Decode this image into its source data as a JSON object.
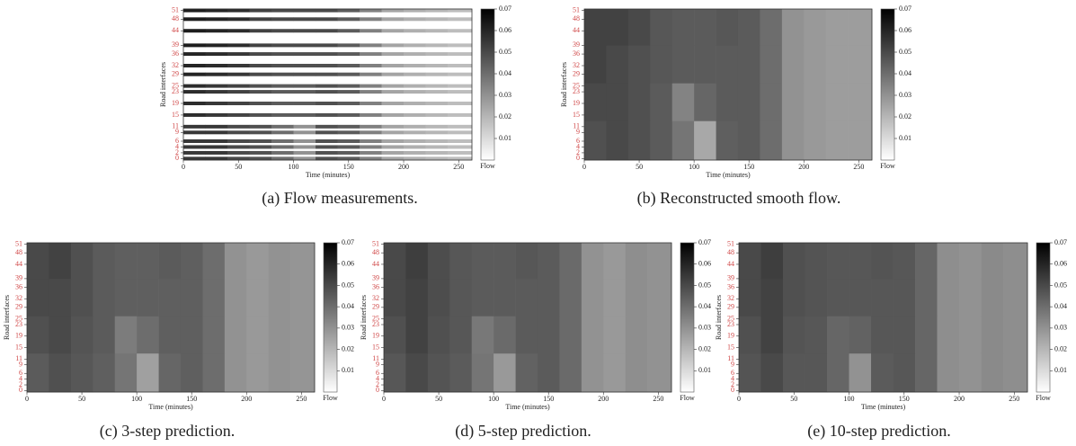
{
  "chart_data": [
    {
      "type": "heatmap",
      "style": "sensor-rows",
      "caption": "(a) Flow measurements.",
      "xlabel": "Time (minutes)",
      "ylabel": "Road interfaces",
      "colorbar_label": "Flow",
      "xlim": [
        0,
        262
      ],
      "xticks": [
        0,
        50,
        100,
        150,
        200,
        250
      ],
      "ylim": [
        -0.5,
        51.5
      ],
      "yticks": [
        0,
        2,
        4,
        6,
        9,
        11,
        15,
        19,
        23,
        25,
        29,
        32,
        36,
        39,
        44,
        48,
        51
      ],
      "ytick_color": "#d04848",
      "clim": [
        0,
        0.07
      ],
      "cticks": [
        0.01,
        0.02,
        0.03,
        0.04,
        0.05,
        0.06,
        0.07
      ],
      "xbins": [
        0,
        20,
        40,
        60,
        80,
        100,
        120,
        140,
        160,
        180,
        200,
        220,
        240,
        262
      ],
      "ybins": [
        -0.5,
        13,
        26,
        39,
        51.5
      ],
      "z": [
        [
          0.055,
          0.055,
          0.05,
          0.048,
          0.04,
          0.03,
          0.048,
          0.045,
          0.035,
          0.025,
          0.022,
          0.02,
          0.018
        ],
        [
          0.058,
          0.055,
          0.052,
          0.048,
          0.045,
          0.045,
          0.048,
          0.045,
          0.035,
          0.025,
          0.022,
          0.02,
          0.018
        ],
        [
          0.06,
          0.058,
          0.055,
          0.05,
          0.048,
          0.048,
          0.048,
          0.045,
          0.035,
          0.025,
          0.022,
          0.02,
          0.018
        ],
        [
          0.062,
          0.06,
          0.058,
          0.052,
          0.05,
          0.05,
          0.05,
          0.045,
          0.035,
          0.025,
          0.022,
          0.02,
          0.018
        ]
      ]
    },
    {
      "type": "heatmap",
      "style": "full",
      "caption": "(b) Reconstructed smooth flow.",
      "xlabel": "Time (minutes)",
      "ylabel": "Road interfaces",
      "colorbar_label": "Flow",
      "xlim": [
        0,
        262
      ],
      "xticks": [
        0,
        50,
        100,
        150,
        200,
        250
      ],
      "ylim": [
        -0.5,
        51.5
      ],
      "yticks": [
        0,
        2,
        4,
        6,
        9,
        11,
        15,
        19,
        23,
        25,
        29,
        32,
        36,
        39,
        44,
        48,
        51
      ],
      "ytick_color": "#d04848",
      "clim": [
        0,
        0.07
      ],
      "cticks": [
        0.01,
        0.02,
        0.03,
        0.04,
        0.05,
        0.06,
        0.07
      ],
      "xbins": [
        0,
        20,
        40,
        60,
        80,
        100,
        120,
        140,
        160,
        180,
        200,
        220,
        240,
        262
      ],
      "ybins": [
        -0.5,
        13,
        26,
        39,
        51.5
      ],
      "z": [
        [
          0.048,
          0.05,
          0.048,
          0.045,
          0.038,
          0.024,
          0.044,
          0.045,
          0.04,
          0.03,
          0.028,
          0.027,
          0.027
        ],
        [
          0.05,
          0.05,
          0.048,
          0.045,
          0.034,
          0.042,
          0.045,
          0.045,
          0.04,
          0.03,
          0.028,
          0.027,
          0.027
        ],
        [
          0.052,
          0.05,
          0.048,
          0.046,
          0.045,
          0.045,
          0.045,
          0.045,
          0.04,
          0.03,
          0.028,
          0.027,
          0.027
        ],
        [
          0.052,
          0.052,
          0.05,
          0.046,
          0.045,
          0.045,
          0.046,
          0.045,
          0.04,
          0.03,
          0.028,
          0.027,
          0.027
        ]
      ]
    },
    {
      "type": "heatmap",
      "style": "full",
      "caption": "(c) 3-step prediction.",
      "xlabel": "Time (minutes)",
      "ylabel": "Road interfaces",
      "colorbar_label": "Flow",
      "xlim": [
        0,
        262
      ],
      "xticks": [
        0,
        50,
        100,
        150,
        200,
        250
      ],
      "ylim": [
        -0.5,
        51.5
      ],
      "yticks": [
        0,
        2,
        4,
        6,
        9,
        11,
        15,
        19,
        23,
        25,
        29,
        32,
        36,
        39,
        44,
        48,
        51
      ],
      "ytick_color": "#d04848",
      "clim": [
        0,
        0.07
      ],
      "cticks": [
        0.01,
        0.02,
        0.03,
        0.04,
        0.05,
        0.06,
        0.07
      ],
      "xbins": [
        0,
        20,
        40,
        60,
        80,
        100,
        120,
        140,
        160,
        180,
        200,
        220,
        240,
        262
      ],
      "ybins": [
        -0.5,
        13,
        26,
        39,
        51.5
      ],
      "z": [
        [
          0.045,
          0.048,
          0.046,
          0.044,
          0.038,
          0.026,
          0.042,
          0.044,
          0.04,
          0.03,
          0.028,
          0.03,
          0.029
        ],
        [
          0.048,
          0.05,
          0.047,
          0.045,
          0.036,
          0.04,
          0.044,
          0.044,
          0.04,
          0.03,
          0.028,
          0.03,
          0.029
        ],
        [
          0.05,
          0.05,
          0.048,
          0.045,
          0.044,
          0.044,
          0.044,
          0.044,
          0.04,
          0.03,
          0.028,
          0.03,
          0.029
        ],
        [
          0.05,
          0.052,
          0.048,
          0.045,
          0.044,
          0.044,
          0.045,
          0.044,
          0.04,
          0.03,
          0.028,
          0.03,
          0.029
        ]
      ]
    },
    {
      "type": "heatmap",
      "style": "full",
      "caption": "(d) 5-step prediction.",
      "xlabel": "Time (minutes)",
      "ylabel": "Road interfaces",
      "colorbar_label": "Flow",
      "xlim": [
        0,
        262
      ],
      "xticks": [
        0,
        50,
        100,
        150,
        200,
        250
      ],
      "ylim": [
        -0.5,
        51.5
      ],
      "yticks": [
        0,
        2,
        4,
        6,
        9,
        11,
        15,
        19,
        23,
        25,
        29,
        32,
        36,
        39,
        44,
        48,
        51
      ],
      "ytick_color": "#d04848",
      "clim": [
        0,
        0.07
      ],
      "cticks": [
        0.01,
        0.02,
        0.03,
        0.04,
        0.05,
        0.06,
        0.07
      ],
      "xbins": [
        0,
        20,
        40,
        60,
        80,
        100,
        120,
        140,
        160,
        180,
        200,
        220,
        240,
        262
      ],
      "ybins": [
        -0.5,
        13,
        26,
        39,
        51.5
      ],
      "z": [
        [
          0.046,
          0.05,
          0.047,
          0.045,
          0.038,
          0.028,
          0.043,
          0.045,
          0.041,
          0.03,
          0.028,
          0.031,
          0.03
        ],
        [
          0.048,
          0.052,
          0.048,
          0.046,
          0.037,
          0.041,
          0.045,
          0.045,
          0.041,
          0.03,
          0.028,
          0.031,
          0.03
        ],
        [
          0.05,
          0.052,
          0.049,
          0.046,
          0.045,
          0.045,
          0.045,
          0.045,
          0.041,
          0.03,
          0.028,
          0.031,
          0.03
        ],
        [
          0.05,
          0.053,
          0.049,
          0.046,
          0.045,
          0.045,
          0.046,
          0.045,
          0.041,
          0.03,
          0.028,
          0.031,
          0.03
        ]
      ]
    },
    {
      "type": "heatmap",
      "style": "full",
      "caption": "(e) 10-step prediction.",
      "xlabel": "Time (minutes)",
      "ylabel": "Road interfaces",
      "colorbar_label": "Flow",
      "xlim": [
        0,
        262
      ],
      "xticks": [
        0,
        50,
        100,
        150,
        200,
        250
      ],
      "ylim": [
        -0.5,
        51.5
      ],
      "yticks": [
        0,
        2,
        4,
        6,
        9,
        11,
        15,
        19,
        23,
        25,
        29,
        32,
        36,
        39,
        44,
        48,
        51
      ],
      "ytick_color": "#d04848",
      "clim": [
        0,
        0.07
      ],
      "cticks": [
        0.01,
        0.02,
        0.03,
        0.04,
        0.05,
        0.06,
        0.07
      ],
      "xbins": [
        0,
        20,
        40,
        60,
        80,
        100,
        120,
        140,
        160,
        180,
        200,
        220,
        240,
        262
      ],
      "ybins": [
        -0.5,
        13,
        26,
        39,
        51.5
      ],
      "z": [
        [
          0.047,
          0.05,
          0.046,
          0.046,
          0.042,
          0.03,
          0.045,
          0.046,
          0.042,
          0.031,
          0.03,
          0.032,
          0.031
        ],
        [
          0.048,
          0.052,
          0.047,
          0.046,
          0.042,
          0.043,
          0.046,
          0.046,
          0.042,
          0.031,
          0.03,
          0.032,
          0.031
        ],
        [
          0.05,
          0.052,
          0.048,
          0.047,
          0.046,
          0.046,
          0.046,
          0.046,
          0.042,
          0.031,
          0.03,
          0.032,
          0.031
        ],
        [
          0.05,
          0.053,
          0.048,
          0.047,
          0.046,
          0.046,
          0.047,
          0.046,
          0.042,
          0.031,
          0.03,
          0.032,
          0.031
        ]
      ]
    }
  ]
}
